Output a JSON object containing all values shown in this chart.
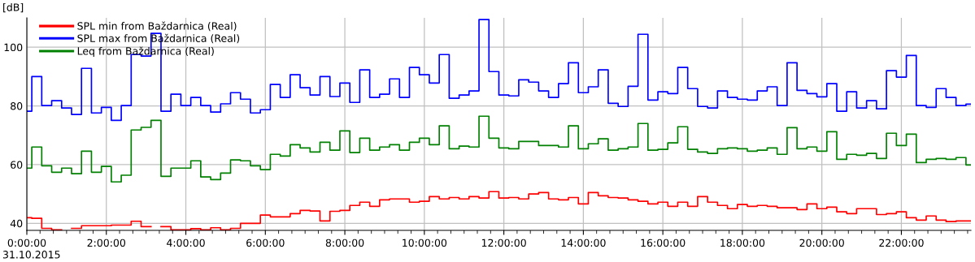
{
  "chart_data": {
    "type": "step",
    "ylabel": "[dB]",
    "annotations": [
      "31.10.2015"
    ],
    "x": [
      0,
      0.25,
      0.5,
      0.75,
      1,
      1.25,
      1.5,
      1.75,
      2,
      2.25,
      2.5,
      2.75,
      3,
      3.25,
      3.5,
      3.75,
      4,
      4.25,
      4.5,
      4.75,
      5,
      5.25,
      5.5,
      5.75,
      6,
      6.25,
      6.5,
      6.75,
      7,
      7.25,
      7.5,
      7.75,
      8,
      8.25,
      8.5,
      8.75,
      9,
      9.25,
      9.5,
      9.75,
      10,
      10.25,
      10.5,
      10.75,
      11,
      11.25,
      11.5,
      11.75,
      12,
      12.25,
      12.5,
      12.75,
      13,
      13.25,
      13.5,
      13.75,
      14,
      14.25,
      14.5,
      14.75,
      15,
      15.25,
      15.5,
      15.75,
      16,
      16.25,
      16.5,
      16.75,
      17,
      17.25,
      17.5,
      17.75,
      18,
      18.25,
      18.5,
      18.75,
      19,
      19.25,
      19.5,
      19.75,
      20,
      20.25,
      20.5,
      20.75,
      21,
      21.25,
      21.5,
      21.75,
      22,
      22.25,
      22.5,
      22.75,
      23,
      23.25,
      23.5,
      23.75
    ],
    "series": [
      {
        "name": "SPL min from Baždarnica (Real)",
        "color": "#ff0000",
        "values": [
          41.9,
          41.7,
          38.3,
          37.8,
          null,
          38.3,
          39.2,
          39.2,
          39.2,
          39.4,
          39.4,
          40.7,
          38.9,
          null,
          38.9,
          37.8,
          37.8,
          38.2,
          37.8,
          38.5,
          37.8,
          38.3,
          40.0,
          40.0,
          42.8,
          42.2,
          42.2,
          43.3,
          44.4,
          44.2,
          40.8,
          44.1,
          44.4,
          46.1,
          47.2,
          45.8,
          48.0,
          48.3,
          48.3,
          47.2,
          47.5,
          49.1,
          48.3,
          48.8,
          48.3,
          49.1,
          48.6,
          50.8,
          48.6,
          48.8,
          48.3,
          50.0,
          50.5,
          48.3,
          48.0,
          48.8,
          46.6,
          50.5,
          49.4,
          48.8,
          48.6,
          48.0,
          47.5,
          46.6,
          47.2,
          45.8,
          47.2,
          45.8,
          49.1,
          47.2,
          46.1,
          45.0,
          46.4,
          45.8,
          46.1,
          45.8,
          45.3,
          45.3,
          44.7,
          46.6,
          45.0,
          45.5,
          43.9,
          43.3,
          45.0,
          45.0,
          43.0,
          43.3,
          43.9,
          41.9,
          41.1,
          42.5,
          41.1,
          40.6,
          40.8,
          40.8
        ]
      },
      {
        "name": "SPL max from Baždarnica (Real)",
        "color": "#0000ff",
        "values": [
          78.2,
          90.0,
          80.1,
          81.8,
          79.3,
          77.1,
          92.8,
          77.6,
          79.5,
          75.1,
          80.1,
          97.5,
          97.0,
          104.7,
          78.2,
          84.0,
          80.1,
          82.9,
          80.1,
          77.9,
          80.7,
          84.5,
          82.3,
          77.6,
          78.7,
          87.3,
          82.9,
          90.6,
          86.2,
          83.7,
          90.0,
          83.2,
          87.8,
          81.2,
          92.3,
          82.9,
          84.0,
          89.2,
          82.9,
          93.1,
          90.6,
          87.8,
          97.5,
          82.6,
          83.7,
          85.1,
          109.4,
          91.7,
          83.7,
          83.4,
          88.9,
          88.1,
          85.1,
          82.9,
          87.6,
          94.7,
          84.5,
          86.5,
          92.3,
          80.9,
          79.8,
          86.7,
          104.4,
          82.0,
          84.8,
          84.2,
          93.1,
          85.9,
          79.8,
          79.3,
          85.1,
          82.9,
          82.3,
          82.0,
          85.1,
          86.5,
          80.1,
          94.7,
          85.3,
          84.2,
          83.1,
          87.6,
          78.2,
          84.8,
          79.3,
          81.8,
          79.0,
          92.0,
          89.8,
          97.2,
          80.1,
          79.5,
          85.9,
          82.9,
          80.1,
          80.6
        ]
      },
      {
        "name": "Leq from Baždarnica (Real)",
        "color": "#008000",
        "values": [
          58.8,
          66.0,
          59.6,
          57.4,
          58.8,
          56.9,
          64.6,
          57.4,
          59.4,
          54.1,
          56.4,
          71.8,
          72.7,
          75.1,
          56.0,
          58.8,
          58.8,
          61.3,
          55.8,
          54.9,
          57.1,
          61.6,
          61.3,
          59.6,
          58.3,
          63.5,
          62.9,
          66.8,
          65.7,
          64.3,
          67.6,
          64.9,
          71.5,
          64.1,
          69.0,
          64.9,
          66.0,
          66.8,
          64.9,
          67.6,
          69.0,
          66.8,
          73.2,
          65.4,
          66.3,
          66.0,
          76.5,
          69.0,
          65.7,
          65.4,
          67.9,
          67.9,
          66.5,
          66.5,
          66.0,
          73.2,
          65.4,
          67.1,
          68.8,
          64.9,
          65.4,
          66.0,
          74.0,
          64.9,
          65.2,
          67.4,
          72.9,
          65.2,
          64.3,
          63.8,
          65.4,
          65.7,
          65.4,
          64.6,
          64.9,
          65.7,
          63.5,
          72.6,
          65.4,
          66.0,
          64.6,
          71.2,
          61.8,
          63.5,
          63.2,
          63.8,
          62.1,
          70.7,
          66.5,
          70.4,
          60.7,
          61.8,
          62.1,
          61.8,
          62.4,
          59.9
        ]
      }
    ],
    "xlim": [
      0,
      23.75
    ],
    "ylim": [
      37.6,
      110
    ],
    "yticks": [
      40,
      60,
      80,
      100
    ],
    "xticks": [
      {
        "value": 0,
        "label": "0:00:00"
      },
      {
        "value": 0.333,
        "label": null
      },
      {
        "value": 0.667,
        "label": null
      },
      {
        "value": 1,
        "label": null
      },
      {
        "value": 1.333,
        "label": null
      },
      {
        "value": 1.667,
        "label": null
      },
      {
        "value": 2,
        "label": "2:00:00"
      },
      {
        "value": 2.333,
        "label": null
      },
      {
        "value": 2.667,
        "label": null
      },
      {
        "value": 3,
        "label": null
      },
      {
        "value": 3.333,
        "label": null
      },
      {
        "value": 3.667,
        "label": null
      },
      {
        "value": 4,
        "label": "4:00:00"
      },
      {
        "value": 4.333,
        "label": null
      },
      {
        "value": 4.667,
        "label": null
      },
      {
        "value": 5,
        "label": null
      },
      {
        "value": 5.333,
        "label": null
      },
      {
        "value": 5.667,
        "label": null
      },
      {
        "value": 6,
        "label": "6:00:00"
      },
      {
        "value": 6.333,
        "label": null
      },
      {
        "value": 6.667,
        "label": null
      },
      {
        "value": 7,
        "label": null
      },
      {
        "value": 7.333,
        "label": null
      },
      {
        "value": 7.667,
        "label": null
      },
      {
        "value": 8,
        "label": "8:00:00"
      },
      {
        "value": 8.333,
        "label": null
      },
      {
        "value": 8.667,
        "label": null
      },
      {
        "value": 9,
        "label": null
      },
      {
        "value": 9.333,
        "label": null
      },
      {
        "value": 9.667,
        "label": null
      },
      {
        "value": 10,
        "label": "10:00:00"
      },
      {
        "value": 10.333,
        "label": null
      },
      {
        "value": 10.667,
        "label": null
      },
      {
        "value": 11,
        "label": null
      },
      {
        "value": 11.333,
        "label": null
      },
      {
        "value": 11.667,
        "label": null
      },
      {
        "value": 12,
        "label": "12:00:00"
      },
      {
        "value": 12.333,
        "label": null
      },
      {
        "value": 12.667,
        "label": null
      },
      {
        "value": 13,
        "label": null
      },
      {
        "value": 13.333,
        "label": null
      },
      {
        "value": 13.667,
        "label": null
      },
      {
        "value": 14,
        "label": "14:00:00"
      },
      {
        "value": 14.333,
        "label": null
      },
      {
        "value": 14.667,
        "label": null
      },
      {
        "value": 15,
        "label": null
      },
      {
        "value": 15.333,
        "label": null
      },
      {
        "value": 15.667,
        "label": null
      },
      {
        "value": 16,
        "label": "16:00:00"
      },
      {
        "value": 16.333,
        "label": null
      },
      {
        "value": 16.667,
        "label": null
      },
      {
        "value": 17,
        "label": null
      },
      {
        "value": 17.333,
        "label": null
      },
      {
        "value": 17.667,
        "label": null
      },
      {
        "value": 18,
        "label": "18:00:00"
      },
      {
        "value": 18.333,
        "label": null
      },
      {
        "value": 18.667,
        "label": null
      },
      {
        "value": 19,
        "label": null
      },
      {
        "value": 19.333,
        "label": null
      },
      {
        "value": 19.667,
        "label": null
      },
      {
        "value": 20,
        "label": "20:00:00"
      },
      {
        "value": 20.333,
        "label": null
      },
      {
        "value": 20.667,
        "label": null
      },
      {
        "value": 21,
        "label": null
      },
      {
        "value": 21.333,
        "label": null
      },
      {
        "value": 21.667,
        "label": null
      },
      {
        "value": 22,
        "label": "22:00:00"
      },
      {
        "value": 22.333,
        "label": null
      },
      {
        "value": 22.667,
        "label": null
      },
      {
        "value": 23,
        "label": null
      },
      {
        "value": 23.333,
        "label": null
      },
      {
        "value": 23.667,
        "label": null
      }
    ],
    "grid": true,
    "legend": "top left",
    "marker": "none",
    "line_style": "solid"
  }
}
